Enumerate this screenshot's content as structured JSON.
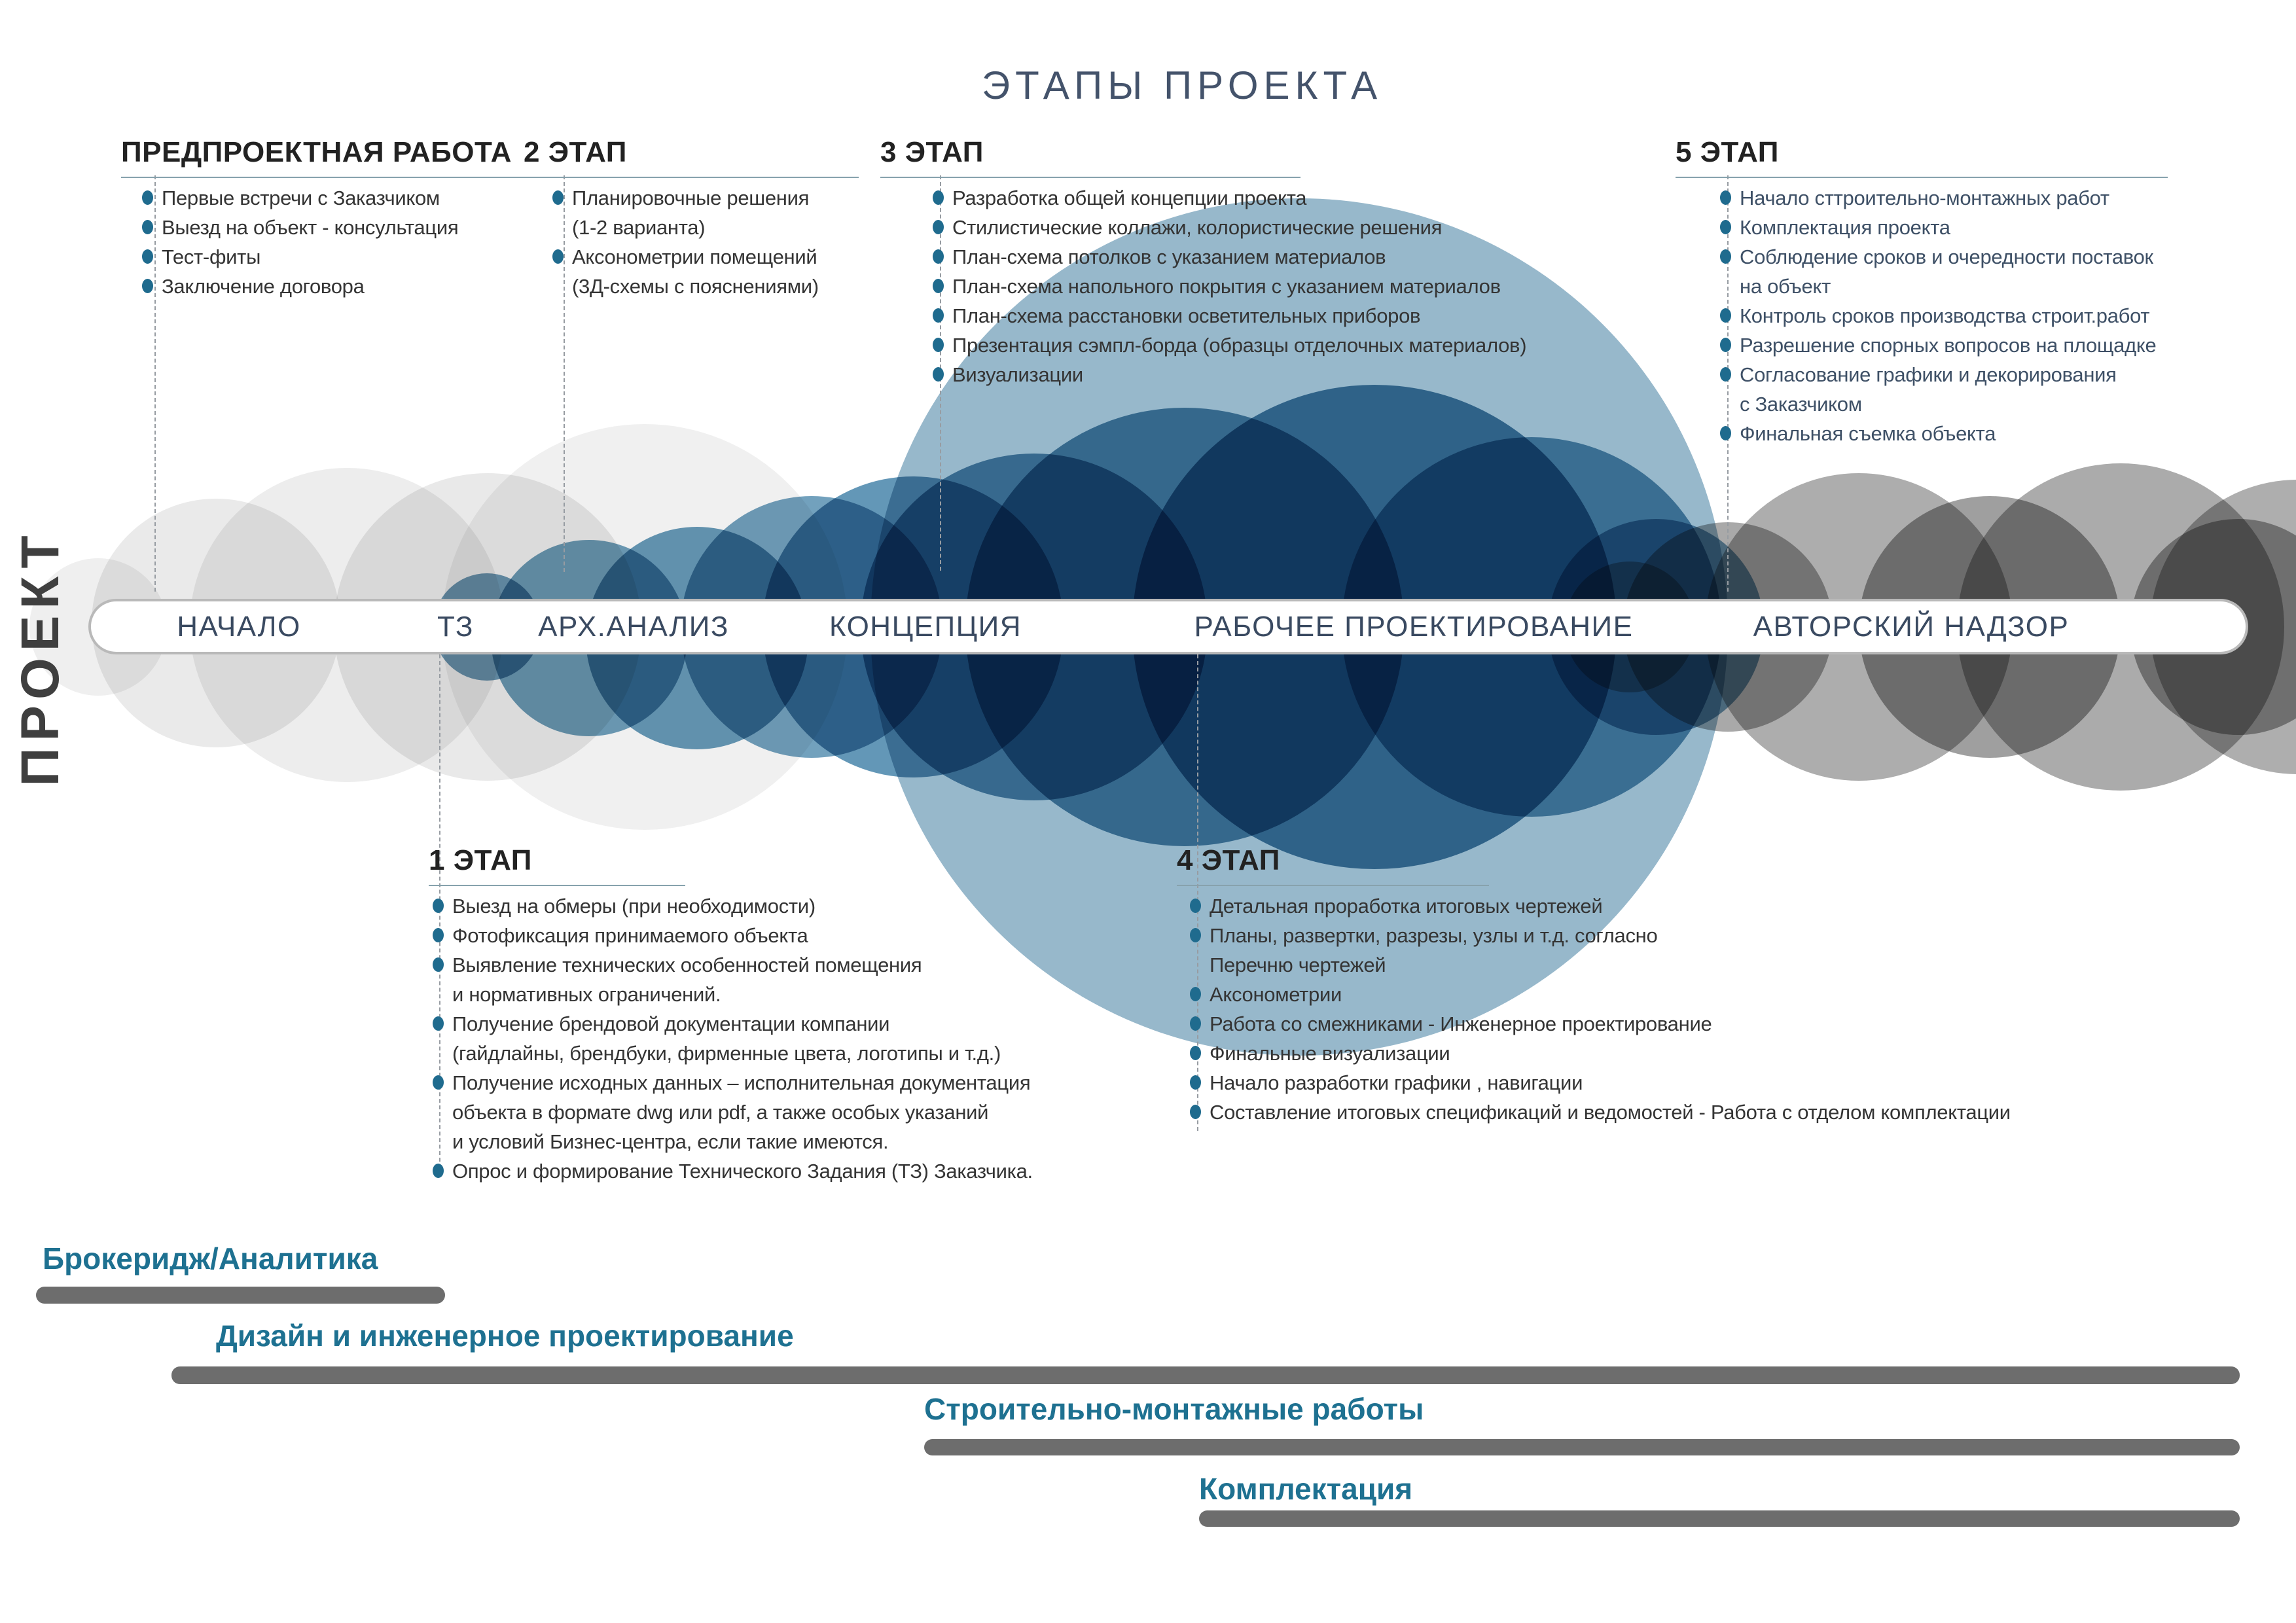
{
  "title": "ЭТАПЫ ПРОЕКТА",
  "project_axis": "ПРОЕКТ",
  "palette": {
    "accent_teal_bullet": "#1f6b8e",
    "title_text": "#44536b",
    "band_label_text": "#3a4a61",
    "stage5_list_text": "#3e5066",
    "list_text": "#343434",
    "underline": "#87a2ad",
    "blue_circle": "#5e92b2",
    "gray_circle": "#a9a9a9",
    "light_circle": "#ececec",
    "gantt_bar": "#6d6d6d",
    "gantt_label": "#1e7191"
  },
  "sections": {
    "predesign": {
      "title": "ПРЕДПРОЕКТНАЯ РАБОТА",
      "items": [
        {
          "lines": [
            "Первые встречи с Заказчиком"
          ]
        },
        {
          "lines": [
            "Выезд на объект - консультация"
          ]
        },
        {
          "lines": [
            "Тест-фиты"
          ]
        },
        {
          "lines": [
            "Заключение договора"
          ]
        }
      ]
    },
    "stage2": {
      "title": "2 ЭТАП",
      "items": [
        {
          "lines": [
            "Планировочные решения",
            "(1-2 варианта)"
          ]
        },
        {
          "lines": [
            "Аксонометрии помещений",
            "(3Д-схемы с пояснениями)"
          ]
        }
      ]
    },
    "stage3": {
      "title": "3 ЭТАП",
      "items": [
        {
          "lines": [
            "Разработка общей концепции проекта"
          ]
        },
        {
          "lines": [
            "Стилистические коллажи, колористические решения"
          ]
        },
        {
          "lines": [
            "План-схема потолков с указанием материалов"
          ]
        },
        {
          "lines": [
            "План-схема напольного покрытия с указанием материалов"
          ]
        },
        {
          "lines": [
            "План-схема расстановки осветительных приборов"
          ]
        },
        {
          "lines": [
            "Презентация сэмпл-борда (образцы отделочных материалов)"
          ]
        },
        {
          "lines": [
            "Визуализации"
          ]
        }
      ]
    },
    "stage5": {
      "title": "5 ЭТАП",
      "items": [
        {
          "lines": [
            "Начало сттроительно-монтажных работ"
          ]
        },
        {
          "lines": [
            "Комплектация проекта"
          ]
        },
        {
          "lines": [
            "Соблюдение сроков и очередности поставок",
            "на объект"
          ]
        },
        {
          "lines": [
            "Контроль сроков производства строит.работ"
          ]
        },
        {
          "lines": [
            "Разрешение спорных вопросов на площадке"
          ]
        },
        {
          "lines": [
            "Согласование графики и декорирования",
            "с Заказчиком"
          ]
        },
        {
          "lines": [
            "Финальная съемка объекта"
          ]
        }
      ]
    },
    "stage1": {
      "title": "1 ЭТАП",
      "items": [
        {
          "lines": [
            "Выезд на обмеры (при необходимости)"
          ]
        },
        {
          "lines": [
            "Фотофиксация принимаемого объекта"
          ]
        },
        {
          "lines": [
            "Выявление технических особенностей помещения",
            "и нормативных ограничений."
          ]
        },
        {
          "lines": [
            "Получение брендовой документации компании",
            "(гайдлайны, брендбуки, фирменные цвета, логотипы и т.д.)"
          ]
        },
        {
          "lines": [
            "Получение исходных данных – исполнительная документация",
            "объекта в формате dwg или pdf, а также особых указаний",
            "и условий Бизнес-центра, если такие имеются."
          ]
        },
        {
          "lines": [
            "Опрос и формирование Технического Задания (ТЗ) Заказчика."
          ]
        }
      ]
    },
    "stage4": {
      "title": "4 ЭТАП",
      "items": [
        {
          "lines": [
            "Детальная проработка итоговых чертежей"
          ]
        },
        {
          "lines": [
            "Планы, развертки, разрезы, узлы и т.д. согласно",
            "Перечню чертежей"
          ]
        },
        {
          "lines": [
            "Аксонометрии"
          ]
        },
        {
          "lines": [
            "Работа со смежниками - Инженерное проектирование"
          ]
        },
        {
          "lines": [
            "Финальные визуализации"
          ]
        },
        {
          "lines": [
            "Начало разработки графики , навигации"
          ]
        },
        {
          "lines": [
            "Составление итоговых спецификаций и ведомостей -  Работа с отделом комплектации"
          ]
        }
      ]
    }
  },
  "timeline": {
    "labels": [
      "НАЧАЛО",
      "ТЗ",
      "АРХ.АНАЛИЗ",
      "КОНЦЕПЦИЯ",
      "РАБОЧЕЕ ПРОЕКТИРОВАНИЕ",
      "АВТОРСКИЙ НАДЗОР"
    ]
  },
  "gantt": {
    "rows": [
      {
        "label": "Брокеридж/Аналитика"
      },
      {
        "label": "Дизайн и инженерное проектирование"
      },
      {
        "label": "Строительно-монтажные работы"
      },
      {
        "label": "Комплектация"
      }
    ]
  }
}
